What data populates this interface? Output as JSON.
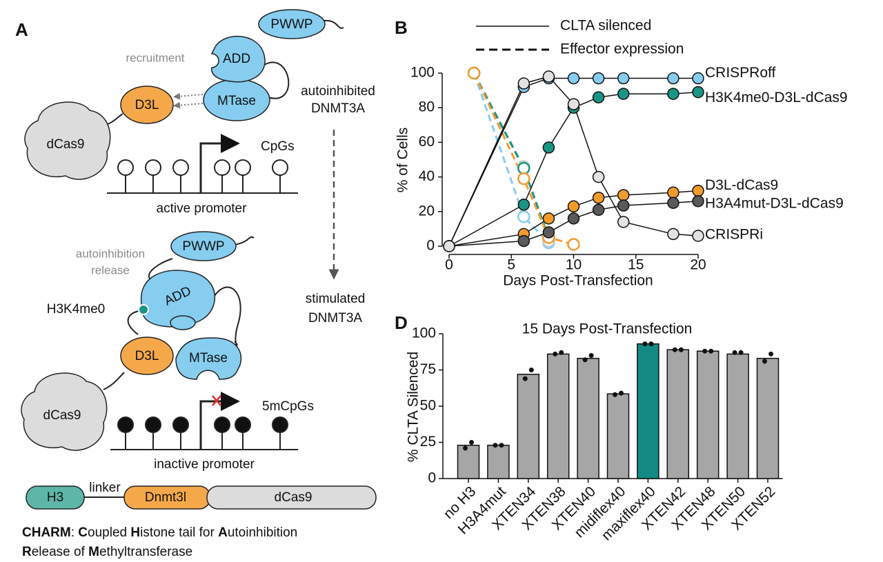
{
  "diagram": {
    "label": "A",
    "top": {
      "pwwp": "PWWP",
      "add": "ADD",
      "mtase": "MTase",
      "recruitment": "recruitment",
      "d3l": "D3L",
      "dcas9": "dCas9",
      "state": [
        "autoinhibited",
        "DNMT3A"
      ],
      "cpgs": "CpGs",
      "promoter": "active promoter"
    },
    "bottom": {
      "pwwp": "PWWP",
      "add": "ADD",
      "mtase": "MTase",
      "release": [
        "autoinhibition",
        "release"
      ],
      "h3k4me0": "H3K4me0",
      "d3l": "D3L",
      "dcas9": "dCas9",
      "state": [
        "stimulated",
        "DNMT3A"
      ],
      "cpgs": "5mCpGs",
      "promoter": "inactive promoter"
    },
    "construct": {
      "h3": "H3",
      "linker": "linker",
      "dnmt3l": "Dnmt3l",
      "dcas9": "dCas9"
    },
    "caption": [
      [
        {
          "text": "CHARM",
          "bold": true
        },
        {
          "text": ": "
        },
        {
          "text": "C",
          "bold": true
        },
        {
          "text": "oupled "
        },
        {
          "text": "H",
          "bold": true
        },
        {
          "text": "istone tail for "
        },
        {
          "text": "A",
          "bold": true
        },
        {
          "text": "utoinhibition"
        }
      ],
      [
        {
          "text": "R",
          "bold": true
        },
        {
          "text": "elease of "
        },
        {
          "text": "M",
          "bold": true
        },
        {
          "text": "ethyltransferase"
        }
      ]
    ]
  },
  "chart_data": [
    {
      "type": "line",
      "label": "B",
      "xlabel": "Days Post-Transfection",
      "ylabel": "% of Cells",
      "xlim": [
        0,
        20
      ],
      "ylim": [
        0,
        100
      ],
      "xticks": [
        0,
        5,
        10,
        15,
        20
      ],
      "yticks": [
        0,
        20,
        40,
        60,
        80,
        100
      ],
      "legend": [
        {
          "label": "CLTA silenced",
          "style": "solid"
        },
        {
          "label": "Effector expression",
          "style": "dashed"
        }
      ],
      "series": [
        {
          "name": "CRISPRoff",
          "color": "#86cdf0",
          "style": "solid",
          "x": [
            0,
            6,
            8,
            10,
            12,
            14,
            18,
            20
          ],
          "values": [
            0,
            92,
            97,
            97,
            97,
            97,
            97,
            97
          ]
        },
        {
          "name": "H3K4me0-D3L-dCas9",
          "color": "#1a9484",
          "style": "solid",
          "x": [
            0,
            6,
            8,
            10,
            12,
            14,
            18,
            20
          ],
          "values": [
            0,
            24,
            57,
            80,
            86,
            88,
            88,
            89
          ]
        },
        {
          "name": "D3L-dCas9",
          "color": "#f39a2d",
          "style": "solid",
          "x": [
            0,
            6,
            8,
            10,
            12,
            14,
            18,
            20
          ],
          "values": [
            0,
            7,
            16,
            23,
            28,
            29.5,
            31,
            32
          ]
        },
        {
          "name": "H3A4mut-D3L-dCas9",
          "color": "#5a5a5a",
          "style": "solid",
          "x": [
            0,
            6,
            8,
            10,
            12,
            14,
            18,
            20
          ],
          "values": [
            0,
            3,
            8,
            16,
            21,
            23.5,
            25,
            26
          ]
        },
        {
          "name": "CRISPRi",
          "color": "#e2e2e2",
          "style": "solid",
          "x": [
            0,
            6,
            8,
            10,
            12,
            14,
            18,
            20
          ],
          "values": [
            0,
            94,
            98,
            82,
            40,
            14,
            7,
            6
          ]
        },
        {
          "color": "#86cdf0",
          "style": "dashed",
          "x": [
            2,
            6,
            8
          ],
          "values": [
            100,
            17,
            2
          ]
        },
        {
          "color": "#cfcfcf",
          "style": "dashed",
          "x": [
            2,
            6,
            8
          ],
          "values": [
            100,
            46,
            3
          ]
        },
        {
          "color": "#1a9484",
          "style": "dashed",
          "x": [
            2,
            6,
            8
          ],
          "values": [
            100,
            45,
            5
          ]
        },
        {
          "color": "#f39a2d",
          "style": "dashed",
          "x": [
            2,
            6,
            8,
            10
          ],
          "values": [
            100,
            39,
            5,
            1
          ]
        }
      ]
    },
    {
      "type": "bar",
      "label": "D",
      "title": "15 Days Post-Transfection",
      "ylabel": "% CLTA Silenced",
      "ylim": [
        0,
        100
      ],
      "yticks": [
        0,
        25,
        50,
        75,
        100
      ],
      "categories": [
        "no H3",
        "H3A4mut",
        "XTEN34",
        "XTEN38",
        "XTEN40",
        "midiflex40",
        "maxiflex40",
        "XTEN42",
        "XTEN48",
        "XTEN50",
        "XTEN52"
      ],
      "values": [
        23,
        23,
        72,
        86,
        83,
        58.5,
        93,
        89,
        88,
        86,
        83
      ],
      "points": [
        [
          21,
          25
        ],
        [
          23,
          23
        ],
        [
          69,
          75
        ],
        [
          86,
          87
        ],
        [
          82,
          85
        ],
        [
          58,
          59
        ],
        [
          93,
          93
        ],
        [
          89,
          89
        ],
        [
          88,
          88
        ],
        [
          87,
          87
        ],
        [
          81,
          86
        ]
      ],
      "colors": [
        "#a6a6a6",
        "#a6a6a6",
        "#a6a6a6",
        "#a6a6a6",
        "#a6a6a6",
        "#a6a6a6",
        "#138b84",
        "#a6a6a6",
        "#a6a6a6",
        "#a6a6a6",
        "#a6a6a6"
      ]
    }
  ]
}
